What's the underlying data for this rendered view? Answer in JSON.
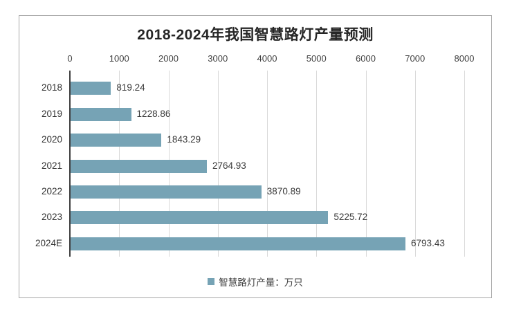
{
  "chart_data": {
    "type": "bar",
    "orientation": "horizontal",
    "title": "2018-2024年我国智慧路灯产量预测",
    "categories": [
      "2018",
      "2019",
      "2020",
      "2021",
      "2022",
      "2023",
      "2024E"
    ],
    "series": [
      {
        "name": "智慧路灯产量：万只",
        "values": [
          819.24,
          1228.86,
          1843.29,
          2764.93,
          3870.89,
          5225.72,
          6793.43
        ],
        "value_labels": [
          "819.24",
          "1228.86",
          "1843.29",
          "2764.93",
          "3870.89",
          "5225.72",
          "6793.43"
        ]
      }
    ],
    "x_axis": {
      "position": "top",
      "min": 0,
      "max": 8000,
      "tick_labels": [
        "0",
        "1000",
        "2000",
        "3000",
        "4000",
        "5000",
        "6000",
        "7000",
        "8000"
      ]
    },
    "grid": true,
    "legend_position": "bottom",
    "legend": {
      "label": "智慧路灯产量：万只"
    },
    "colors": {
      "bar": "#76a3b5",
      "legend_swatch": "#76a3b5",
      "gridline": "#d9d9d9",
      "axis_line": "#3f3f3f",
      "title_text": "#262626",
      "label_text": "#404040",
      "border": "#a6a6a6"
    }
  }
}
